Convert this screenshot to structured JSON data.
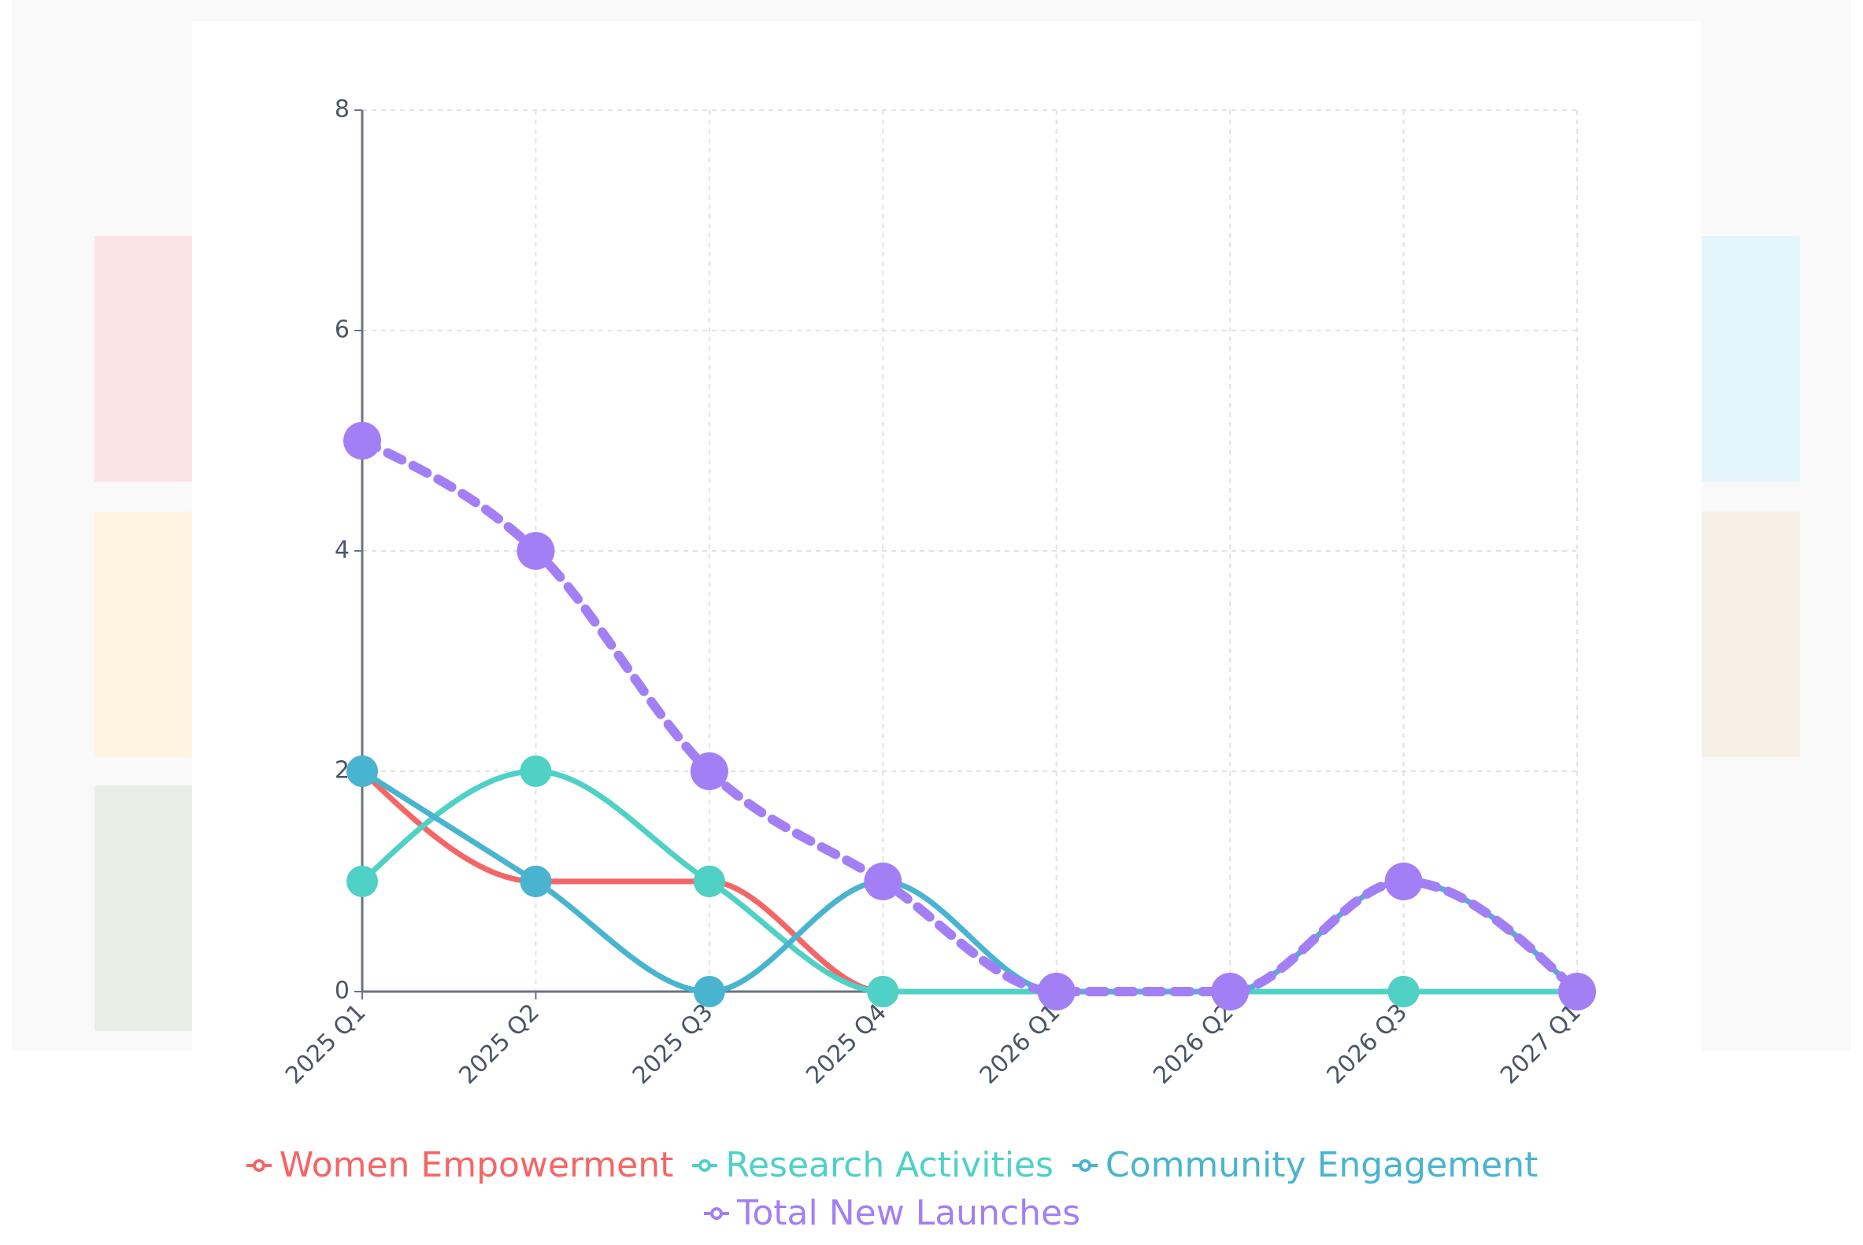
{
  "chart_data": {
    "type": "line",
    "categories": [
      "2025 Q1",
      "2025 Q2",
      "2025 Q3",
      "2025 Q4",
      "2026 Q1",
      "2026 Q2",
      "2026 Q3",
      "2027 Q1"
    ],
    "series": [
      {
        "name": "Women Empowerment",
        "color": "#f56565",
        "values": [
          2,
          1,
          1,
          0,
          0,
          0,
          0,
          0
        ]
      },
      {
        "name": "Research Activities",
        "color": "#4fd1c5",
        "values": [
          1,
          2,
          1,
          0,
          0,
          0,
          0,
          0
        ]
      },
      {
        "name": "Community Engagement",
        "color": "#48b4d0",
        "values": [
          2,
          1,
          0,
          1,
          0,
          0,
          1,
          0
        ]
      },
      {
        "name": "Total New Launches",
        "color": "#a27ff5",
        "values": [
          5,
          4,
          2,
          1,
          0,
          0,
          1,
          0
        ],
        "dashed": true
      }
    ],
    "ylim": [
      0,
      8
    ],
    "yticks": [
      0,
      2,
      4,
      6,
      8
    ],
    "grid": true
  }
}
